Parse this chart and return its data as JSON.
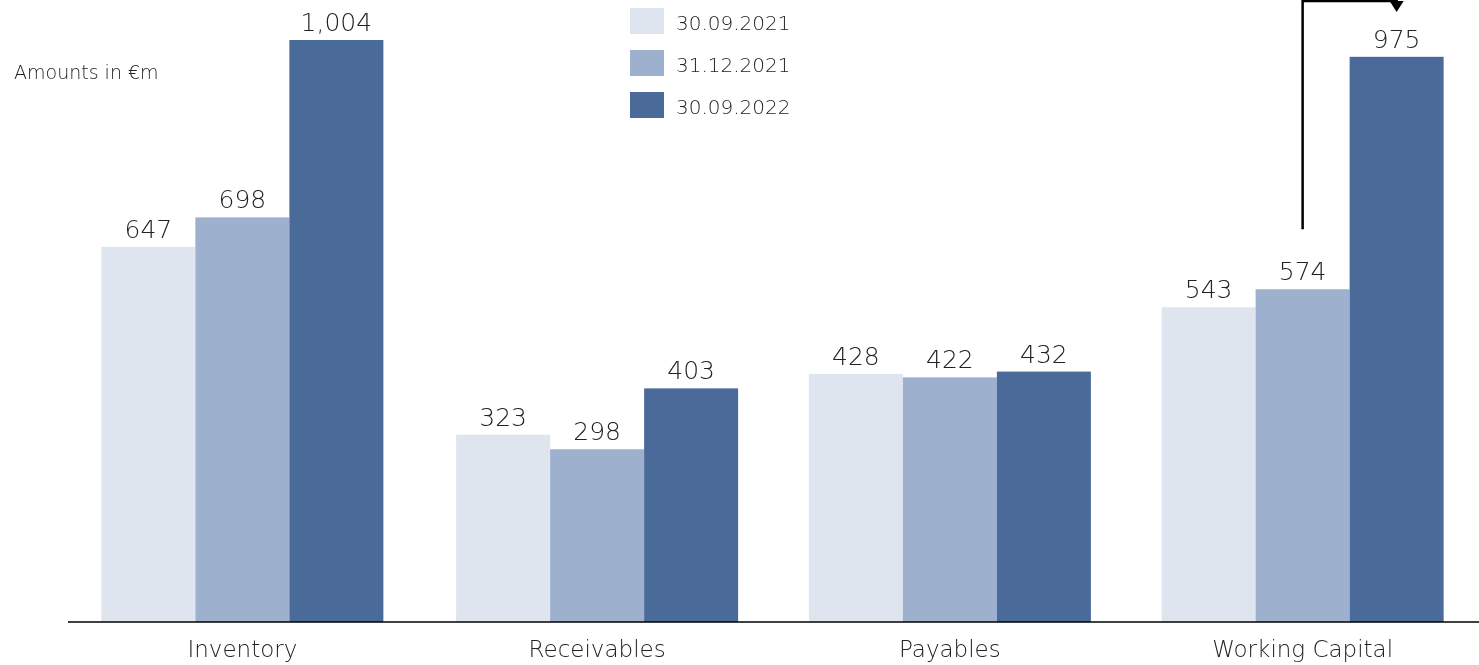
{
  "chart_data": {
    "type": "bar",
    "ylabel": "Amounts  in €m",
    "categories": [
      "Inventory",
      "Receivables",
      "Payables",
      "Working Capital"
    ],
    "series": [
      {
        "name": "30.09.2021",
        "color": "#dfe5ef",
        "values": [
          647,
          323,
          428,
          543
        ],
        "value_labels": [
          "647",
          "323",
          "428",
          "543"
        ]
      },
      {
        "name": "31.12.2021",
        "color": "#9db0cd",
        "values": [
          698,
          298,
          422,
          574
        ],
        "value_labels": [
          "698",
          "298",
          "422",
          "574"
        ]
      },
      {
        "name": "30.09.2022",
        "color": "#4a6a9a",
        "values": [
          1004,
          403,
          432,
          975
        ],
        "value_labels": [
          "1,004",
          "403",
          "432",
          "975"
        ]
      }
    ],
    "tick_labels": "x",
    "legend": "top"
  }
}
